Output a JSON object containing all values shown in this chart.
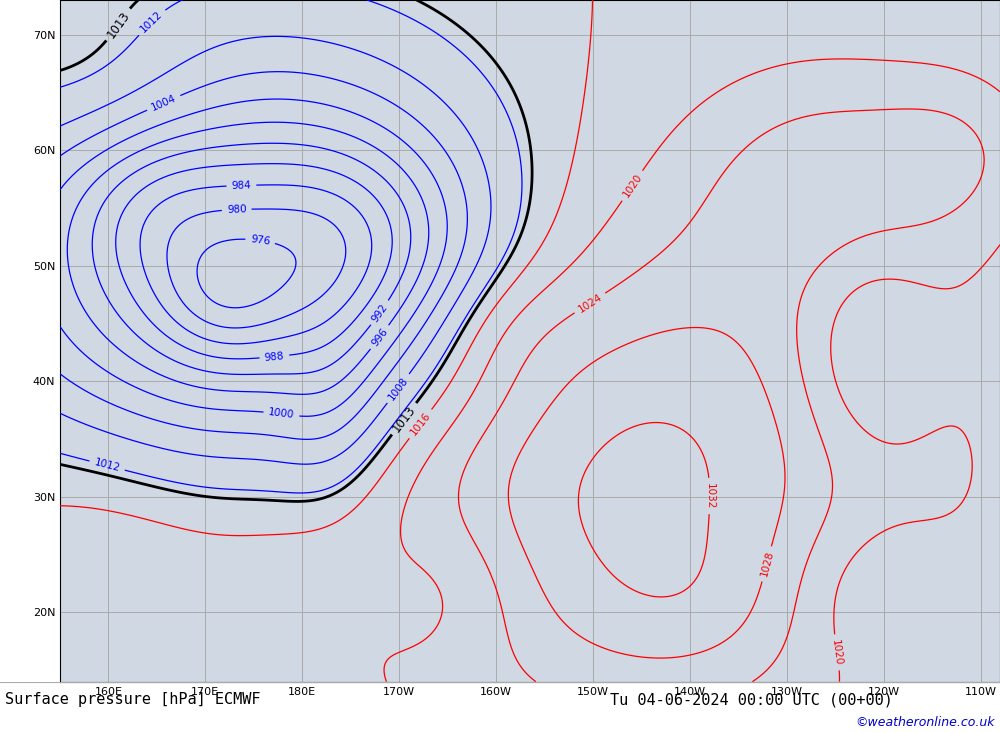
{
  "title": "Surface pressure [hPa] ECMWF",
  "datetime_label": "Tu 04-06-2024 00:00 UTC (00+00)",
  "credit": "©weatheronline.co.uk",
  "lon_min": 155,
  "lon_max": 252,
  "lat_min": 14,
  "lat_max": 73,
  "land_color": "#a8d08d",
  "sea_color": "#d0d8e4",
  "grid_color": "#aaaaaa",
  "coast_color": "#555555",
  "contour_low_color": "blue",
  "contour_high_color": "red",
  "contour_bold_color": "black",
  "bottom_bar_color": "white",
  "credit_color": "#0000cc",
  "label_fontsize": 7.5,
  "title_fontsize": 11,
  "credit_fontsize": 9,
  "bold_level": 1013,
  "pressure_min": 960,
  "pressure_max": 1048,
  "pressure_step": 4,
  "grid_lons": [
    160,
    170,
    180,
    190,
    200,
    210,
    220,
    230,
    240,
    250
  ],
  "grid_lats": [
    20,
    30,
    40,
    50,
    60,
    70
  ],
  "gauss_features": [
    {
      "lon": 175,
      "lat": 50,
      "amp": -34,
      "wlon": 18,
      "wlat": 12
    },
    {
      "lon": 172,
      "lat": 47,
      "amp": -8,
      "wlon": 5,
      "wlat": 4
    },
    {
      "lon": 185,
      "lat": 52,
      "amp": -10,
      "wlon": 8,
      "wlat": 6
    },
    {
      "lon": 165,
      "lat": 55,
      "amp": -6,
      "wlon": 6,
      "wlat": 5
    },
    {
      "lon": 183,
      "lat": 38,
      "amp": -5,
      "wlon": 4,
      "wlat": 7
    },
    {
      "lon": 212,
      "lat": 33,
      "amp": 18,
      "wlon": 22,
      "wlat": 16
    },
    {
      "lon": 235,
      "lat": 58,
      "amp": 8,
      "wlon": 10,
      "wlat": 7
    },
    {
      "lon": 195,
      "lat": 22,
      "amp": -5,
      "wlon": 6,
      "wlat": 5
    },
    {
      "lon": 160,
      "lat": 28,
      "amp": 4,
      "wlon": 10,
      "wlat": 8
    },
    {
      "lon": 238,
      "lat": 42,
      "amp": -7,
      "wlon": 5,
      "wlat": 7
    },
    {
      "lon": 238,
      "lat": 22,
      "amp": -5,
      "wlon": 6,
      "wlat": 5
    },
    {
      "lon": 248,
      "lat": 60,
      "amp": 5,
      "wlon": 6,
      "wlat": 5
    },
    {
      "lon": 160,
      "lat": 65,
      "amp": 5,
      "wlon": 8,
      "wlat": 5
    },
    {
      "lon": 220,
      "lat": 20,
      "amp": 3,
      "wlon": 8,
      "wlat": 5
    },
    {
      "lon": 200,
      "lat": 45,
      "amp": 3,
      "wlon": 6,
      "wlat": 4
    }
  ],
  "base_pressure": 1016.0
}
